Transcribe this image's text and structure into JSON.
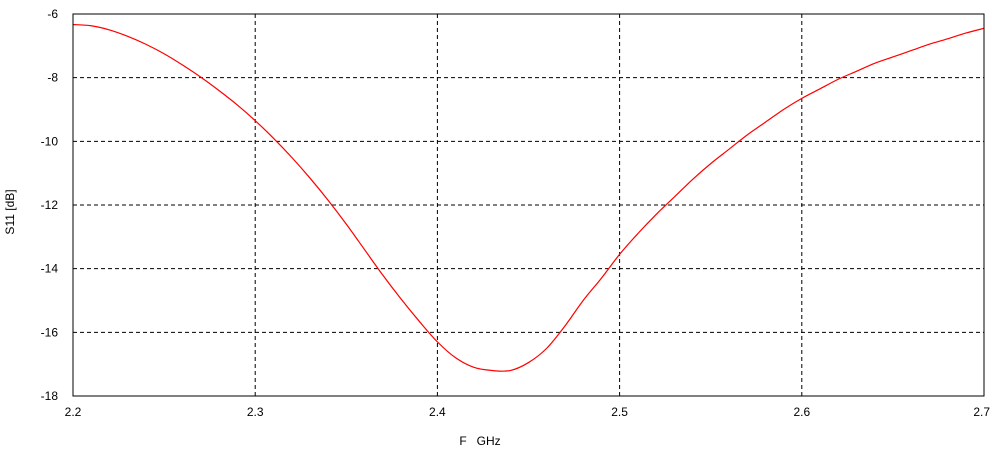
{
  "chart_data": {
    "type": "line",
    "title": "",
    "xlabel": "F   GHz",
    "ylabel": "S11 [dB]",
    "xlim": [
      2.2,
      2.7
    ],
    "ylim": [
      -18,
      -6
    ],
    "x_ticks": [
      2.2,
      2.3,
      2.4,
      2.5,
      2.6,
      2.7
    ],
    "x_tick_labels": [
      "2.2",
      "2.3",
      "2.4",
      "2.5",
      "2.6",
      "2.7"
    ],
    "y_ticks": [
      -6,
      -8,
      -10,
      -12,
      -14,
      -16,
      -18
    ],
    "y_tick_labels": [
      "-6",
      "-8",
      "-10",
      "-12",
      "-14",
      "-16",
      "-18"
    ],
    "grid": true,
    "legend": "none",
    "series": [
      {
        "color": "#ff0000",
        "x": [
          2.2,
          2.21,
          2.22,
          2.23,
          2.24,
          2.25,
          2.26,
          2.27,
          2.28,
          2.29,
          2.3,
          2.31,
          2.32,
          2.33,
          2.34,
          2.35,
          2.36,
          2.37,
          2.38,
          2.39,
          2.4,
          2.41,
          2.42,
          2.43,
          2.44,
          2.45,
          2.46,
          2.47,
          2.48,
          2.49,
          2.5,
          2.51,
          2.52,
          2.53,
          2.54,
          2.55,
          2.56,
          2.57,
          2.58,
          2.59,
          2.6,
          2.61,
          2.62,
          2.63,
          2.64,
          2.65,
          2.66,
          2.67,
          2.68,
          2.69,
          2.7
        ],
        "y": [
          -6.33,
          -6.37,
          -6.5,
          -6.7,
          -6.95,
          -7.25,
          -7.6,
          -7.98,
          -8.4,
          -8.85,
          -9.35,
          -9.9,
          -10.5,
          -11.15,
          -11.85,
          -12.6,
          -13.4,
          -14.2,
          -14.95,
          -15.65,
          -16.3,
          -16.8,
          -17.1,
          -17.2,
          -17.2,
          -16.95,
          -16.5,
          -15.8,
          -15.0,
          -14.3,
          -13.55,
          -12.9,
          -12.3,
          -11.75,
          -11.2,
          -10.7,
          -10.25,
          -9.8,
          -9.4,
          -9.0,
          -8.65,
          -8.35,
          -8.05,
          -7.8,
          -7.55,
          -7.35,
          -7.15,
          -6.95,
          -6.78,
          -6.6,
          -6.45
        ]
      }
    ]
  }
}
